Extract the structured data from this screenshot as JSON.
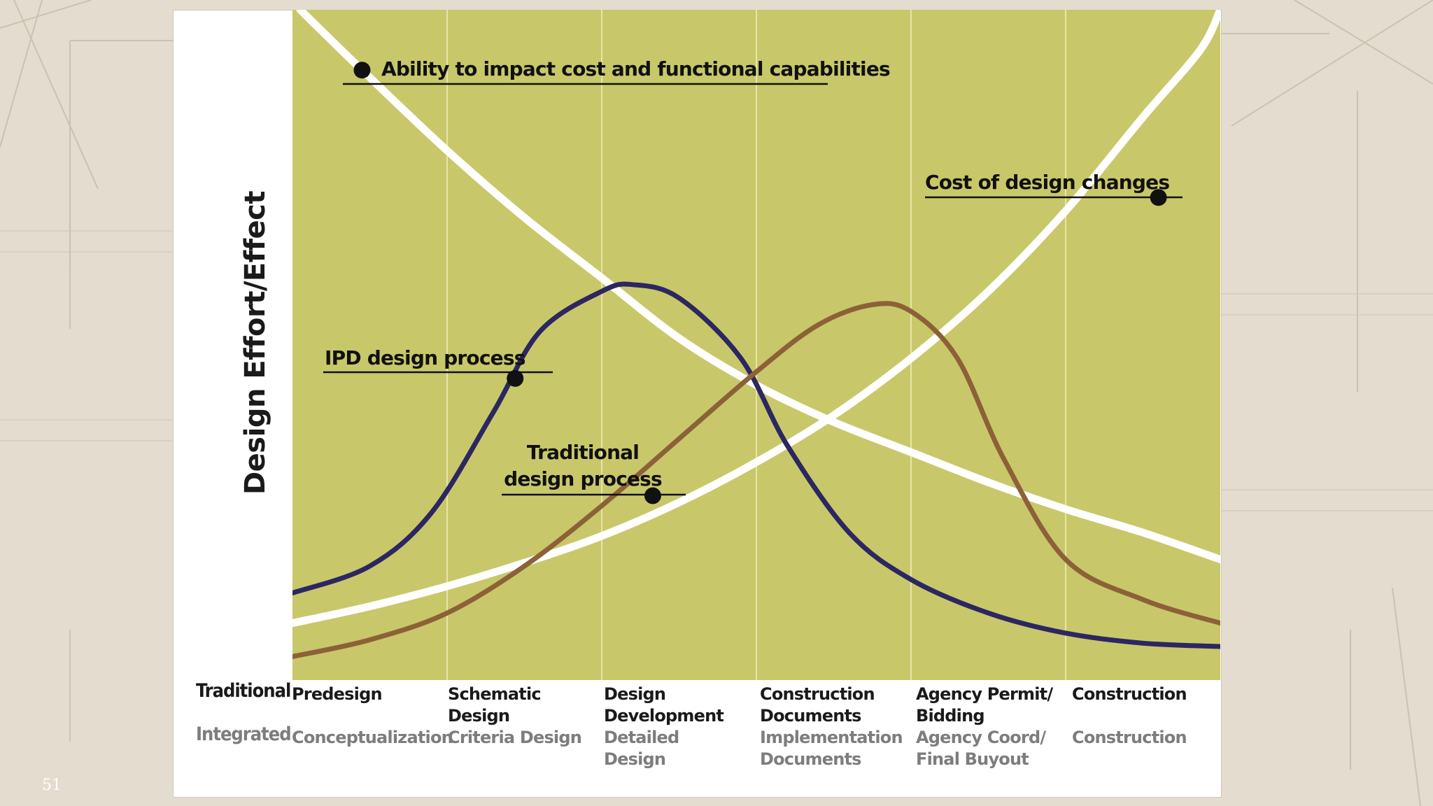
{
  "slide_number": "51",
  "colors": {
    "plot_bg": "#c8c86a",
    "white_curve": "#ffffff",
    "ipd_curve": "#2c2761",
    "traditional_curve": "#8c6138",
    "marker": "#111111"
  },
  "chart_data": {
    "type": "line",
    "title": "",
    "xlabel": "",
    "ylabel": "Design Effort/Effect",
    "xlim": [
      0,
      6
    ],
    "ylim": [
      0,
      100
    ],
    "grid": true,
    "phase_rows": {
      "traditional_label": "Traditional",
      "integrated_label": "Integrated"
    },
    "phases": [
      {
        "traditional": "Predesign",
        "integrated": "Conceptualization"
      },
      {
        "traditional": "Schematic Design",
        "integrated": "Criteria Design"
      },
      {
        "traditional": "Design Development",
        "integrated": "Detailed Design"
      },
      {
        "traditional": "Construction Documents",
        "integrated": "Implementation Documents"
      },
      {
        "traditional": "Agency Permit/ Bidding",
        "integrated": "Agency Coord/ Final Buyout"
      },
      {
        "traditional": "Construction",
        "integrated": "Construction"
      }
    ],
    "series": [
      {
        "name": "Ability to impact cost and functional capabilities",
        "color": "#ffffff",
        "x": [
          0.05,
          0.45,
          1.0,
          1.5,
          2.0,
          2.5,
          3.0,
          3.5,
          4.0,
          4.5,
          5.0,
          5.5,
          6.0
        ],
        "y": [
          100,
          91,
          79,
          69,
          60,
          51,
          44,
          38.5,
          34,
          29.5,
          25.5,
          22,
          18
        ]
      },
      {
        "name": "Cost of design changes",
        "color": "#ffffff",
        "x": [
          0,
          0.5,
          1.0,
          1.5,
          2.0,
          2.5,
          3.0,
          3.5,
          4.0,
          4.5,
          5.0,
          5.5,
          5.87,
          6.0
        ],
        "y": [
          8.5,
          11,
          14,
          17.5,
          21.5,
          26.5,
          32.5,
          39.5,
          48,
          58,
          70,
          84,
          94,
          100
        ]
      },
      {
        "name": "IPD design process",
        "color": "#2c2761",
        "x": [
          0,
          0.5,
          0.9,
          1.3,
          1.6,
          2.0,
          2.2,
          2.5,
          2.9,
          3.2,
          3.6,
          4.0,
          4.5,
          5.0,
          5.5,
          6.0
        ],
        "y": [
          13,
          17,
          25,
          40,
          52,
          58,
          59,
          57,
          48,
          35,
          22,
          15,
          10,
          7,
          5.5,
          5
        ]
      },
      {
        "name": "Traditional design process",
        "color": "#8c6138",
        "x": [
          0,
          0.5,
          1.0,
          1.5,
          2.0,
          2.5,
          3.0,
          3.4,
          3.75,
          4.0,
          4.3,
          4.6,
          5.0,
          5.5,
          6.0
        ],
        "y": [
          3.5,
          6,
          10,
          17,
          26,
          36,
          46,
          53,
          56,
          55,
          48,
          33,
          18,
          12,
          8.5
        ]
      }
    ],
    "annotations": [
      {
        "text": "Ability to impact cost and functional capabilities",
        "marker": [
          0.45,
          91
        ]
      },
      {
        "text": "Cost of design changes",
        "marker": [
          5.6,
          72
        ]
      },
      {
        "text": "IPD design process",
        "marker": [
          1.44,
          45
        ]
      },
      {
        "text": "Traditional design process",
        "marker": [
          2.33,
          27.5
        ]
      }
    ]
  }
}
